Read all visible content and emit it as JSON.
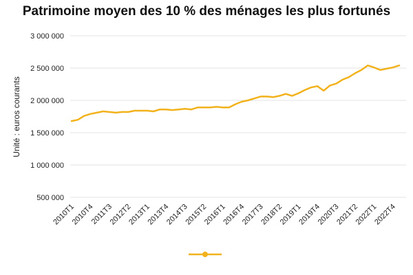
{
  "chart_data": {
    "type": "line",
    "title": "Patrimoine moyen des 10 % des ménages les plus fortunés",
    "ylabel": "Unité : euros courants",
    "xlabel": "",
    "ylim": [
      500000,
      3000000
    ],
    "yticks": [
      500000,
      1000000,
      1500000,
      2000000,
      2500000,
      3000000
    ],
    "ytick_labels": [
      "500 000",
      "1 000 000",
      "1 500 000",
      "2 000 000",
      "2 500 000",
      "3 000 000"
    ],
    "grid": true,
    "legend": "bottom",
    "categories": [
      "2010T1",
      "2010T2",
      "2010T3",
      "2010T4",
      "2011T1",
      "2011T2",
      "2011T3",
      "2011T4",
      "2012T1",
      "2012T2",
      "2012T3",
      "2012T4",
      "2013T1",
      "2013T2",
      "2013T3",
      "2013T4",
      "2014T1",
      "2014T2",
      "2014T3",
      "2014T4",
      "2015T1",
      "2015T2",
      "2015T3",
      "2015T4",
      "2016T1",
      "2016T2",
      "2016T3",
      "2016T4",
      "2017T1",
      "2017T2",
      "2017T3",
      "2017T4",
      "2018T1",
      "2018T2",
      "2018T3",
      "2018T4",
      "2019T1",
      "2019T2",
      "2019T3",
      "2019T4",
      "2020T1",
      "2020T2",
      "2020T3",
      "2020T4",
      "2021T1",
      "2021T2",
      "2021T3",
      "2021T4",
      "2022T1",
      "2022T2",
      "2022T3",
      "2022T4",
      "2023T1"
    ],
    "x_tick_labels": [
      "2010T1",
      "2010T4",
      "2011T3",
      "2012T2",
      "2013T1",
      "2013T4",
      "2014T3",
      "2015T2",
      "2016T1",
      "2016T4",
      "2017T3",
      "2018T2",
      "2019T1",
      "2019T4",
      "2020T3",
      "2021T2",
      "2022T1",
      "2022T4"
    ],
    "series": [
      {
        "name": "",
        "color": "#f2b21b",
        "values": [
          1680000,
          1700000,
          1760000,
          1790000,
          1810000,
          1830000,
          1820000,
          1810000,
          1820000,
          1820000,
          1840000,
          1840000,
          1840000,
          1830000,
          1860000,
          1860000,
          1850000,
          1860000,
          1870000,
          1860000,
          1890000,
          1890000,
          1890000,
          1900000,
          1890000,
          1890000,
          1940000,
          1980000,
          2000000,
          2030000,
          2060000,
          2060000,
          2050000,
          2070000,
          2100000,
          2070000,
          2110000,
          2160000,
          2200000,
          2220000,
          2150000,
          2230000,
          2260000,
          2320000,
          2360000,
          2420000,
          2470000,
          2540000,
          2510000,
          2470000,
          2490000,
          2510000,
          2540000
        ]
      }
    ]
  }
}
